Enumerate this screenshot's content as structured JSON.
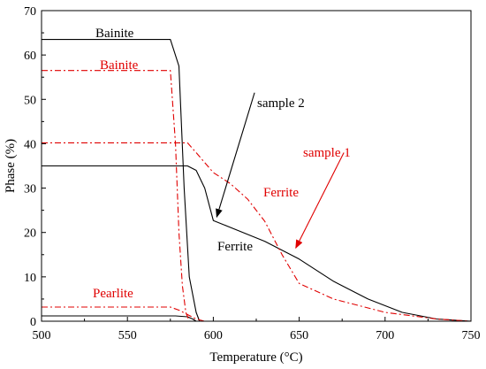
{
  "chart_data": {
    "type": "line",
    "xlabel": "Temperature (°C)",
    "ylabel": "Phase (%)",
    "xlim": [
      500,
      750
    ],
    "ylim": [
      0,
      70
    ],
    "xticks": [
      500,
      550,
      600,
      650,
      700,
      750
    ],
    "yticks": [
      0,
      10,
      20,
      30,
      40,
      50,
      60,
      70
    ],
    "grid": false,
    "colors": {
      "sample2": "#000000",
      "sample1": "#e00000"
    },
    "series": [
      {
        "group": "sample2",
        "style": "solid",
        "x": [
          500,
          575,
          580,
          583,
          586,
          590,
          592,
          600,
          750
        ],
        "y": [
          63.5,
          63.5,
          57.5,
          30,
          10,
          2,
          0,
          0,
          0
        ]
      },
      {
        "group": "sample2",
        "style": "solid",
        "x": [
          500,
          585,
          590,
          595,
          600,
          630,
          650,
          670,
          690,
          710,
          730,
          750
        ],
        "y": [
          35,
          35,
          34,
          30,
          22.7,
          18,
          14,
          9,
          5,
          2,
          0.5,
          0
        ]
      },
      {
        "group": "sample2",
        "style": "solid",
        "x": [
          500,
          578,
          585,
          588,
          590,
          595,
          750
        ],
        "y": [
          1.2,
          1.2,
          1,
          0.5,
          0,
          0,
          0
        ]
      },
      {
        "group": "sample1",
        "style": "dashdot",
        "x": [
          500,
          575,
          578,
          580,
          582,
          584,
          586,
          750
        ],
        "y": [
          56.5,
          56.5,
          40,
          20,
          8,
          2,
          0,
          0
        ]
      },
      {
        "group": "sample1",
        "style": "dashdot",
        "x": [
          500,
          585,
          590,
          600,
          610,
          620,
          630,
          640,
          650,
          670,
          700,
          730,
          750
        ],
        "y": [
          40.2,
          40.2,
          38,
          33.5,
          31,
          27.5,
          22.5,
          15,
          8.5,
          5,
          2,
          0.5,
          0
        ]
      },
      {
        "group": "sample1",
        "style": "dashdot",
        "x": [
          500,
          575,
          580,
          585,
          590,
          595,
          750
        ],
        "y": [
          3.2,
          3.2,
          2.5,
          1.5,
          0.5,
          0,
          0
        ]
      }
    ],
    "annotations": [
      {
        "text": "Bainite",
        "group": "sample2"
      },
      {
        "text": "Bainite",
        "group": "sample1"
      },
      {
        "text": "sample 2",
        "group": "sample2"
      },
      {
        "text": "sample 1",
        "group": "sample1"
      },
      {
        "text": "Ferrite",
        "group": "sample1"
      },
      {
        "text": "Ferrite",
        "group": "sample2"
      },
      {
        "text": "Pearlite",
        "group": "sample1"
      }
    ],
    "arrows": [
      {
        "group": "sample2",
        "from": [
          624,
          51.5
        ],
        "to": [
          602,
          23.5
        ]
      },
      {
        "group": "sample1",
        "from": [
          676,
          38
        ],
        "to": [
          648,
          16.5
        ]
      }
    ]
  }
}
